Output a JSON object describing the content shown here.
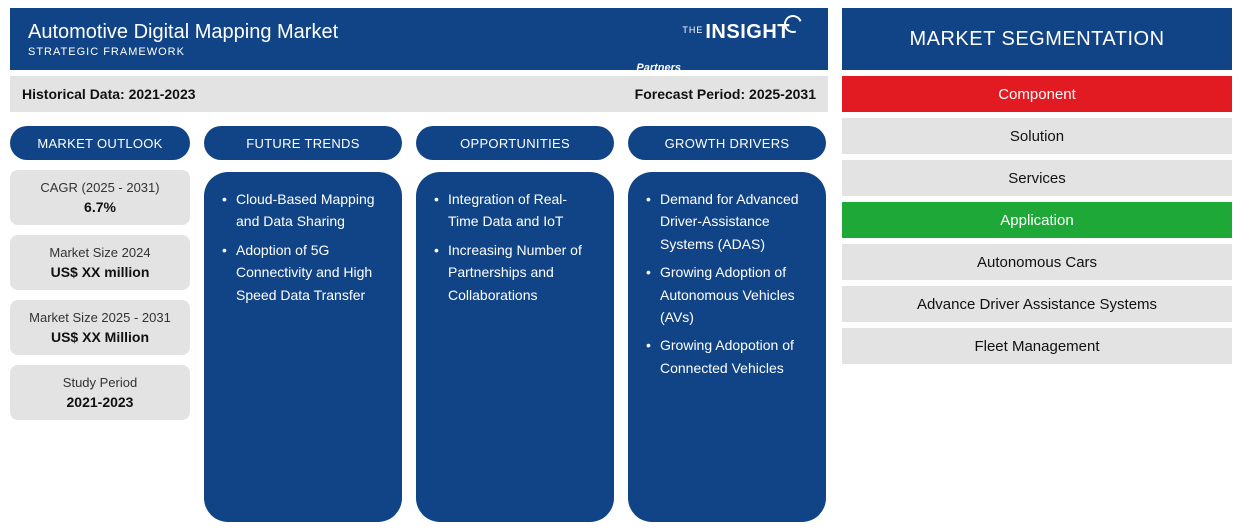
{
  "colors": {
    "primary_blue": "#114486",
    "light_gray": "#e3e3e3",
    "red": "#e21b22",
    "green": "#1ea838",
    "white": "#ffffff",
    "text_dark": "#111111"
  },
  "header": {
    "title": "Automotive Digital Mapping Market",
    "subtitle": "STRATEGIC FRAMEWORK",
    "logo_the": "THE",
    "logo_main": "INSIGHT",
    "logo_sub": "Partners"
  },
  "period_bar": {
    "historical_label": "Historical Data: 2021-2023",
    "forecast_label": "Forecast Period: 2025-2031"
  },
  "outlook": {
    "heading": "MARKET OUTLOOK",
    "stats": [
      {
        "label": "CAGR (2025 - 2031)",
        "value": "6.7%"
      },
      {
        "label": "Market Size 2024",
        "value": "US$ XX million"
      },
      {
        "label": "Market Size 2025 - 2031",
        "value": "US$ XX Million"
      },
      {
        "label": "Study Period",
        "value": "2021-2023"
      }
    ]
  },
  "columns": [
    {
      "heading": "FUTURE TRENDS",
      "items": [
        "Cloud-Based Mapping and Data Sharing",
        "Adoption of 5G Connectivity and High Speed Data Transfer"
      ]
    },
    {
      "heading": "OPPORTUNITIES",
      "items": [
        "Integration of Real-Time Data and IoT",
        "Increasing Number of Partnerships and Collaborations"
      ]
    },
    {
      "heading": "GROWTH DRIVERS",
      "items": [
        "Demand for Advanced Driver-Assistance Systems (ADAS)",
        "Growing Adoption of Autonomous Vehicles (AVs)",
        "Growing Adopotion of Connected Vehicles"
      ]
    }
  ],
  "segmentation": {
    "heading": "MARKET SEGMENTATION",
    "groups": [
      {
        "category": "Component",
        "color": "red",
        "items": [
          "Solution",
          "Services"
        ]
      },
      {
        "category": "Application",
        "color": "green",
        "items": [
          "Autonomous Cars",
          "Advance Driver Assistance Systems",
          "Fleet Management"
        ]
      }
    ]
  }
}
